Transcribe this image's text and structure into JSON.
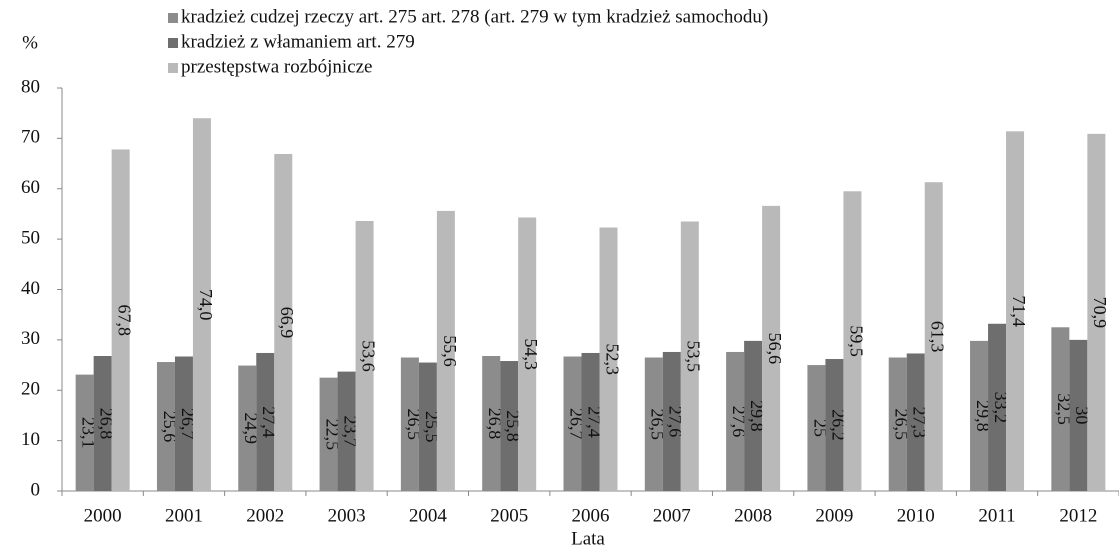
{
  "chart_data": {
    "type": "bar",
    "y_label": "%",
    "x_label": "Lata",
    "categories": [
      "2000",
      "2001",
      "2002",
      "2003",
      "2004",
      "2005",
      "2006",
      "2007",
      "2008",
      "2009",
      "2010",
      "2011",
      "2012"
    ],
    "series": [
      {
        "name": "kradzież cudzej rzeczy art. 275 art. 278 (art. 279 w tym kradzież samochodu)",
        "color": "#8c8c8c",
        "values": [
          23.1,
          25.6,
          24.9,
          22.5,
          26.5,
          26.8,
          26.7,
          26.5,
          27.6,
          25,
          26.5,
          29.8,
          32.5
        ],
        "value_labels": [
          "23,1",
          "25,6",
          "24,9",
          "22,5",
          "26,5",
          "26,8",
          "26,7",
          "26,5",
          "27,6",
          "25",
          "26,5",
          "29,8",
          "32,5"
        ]
      },
      {
        "name": "kradzież z włamaniem art. 279",
        "color": "#6e6e6e",
        "values": [
          26.8,
          26.7,
          27.4,
          23.7,
          25.5,
          25.8,
          27.4,
          27.6,
          29.8,
          26.2,
          27.3,
          33.2,
          30
        ],
        "value_labels": [
          "26,8",
          "26,7",
          "27,4",
          "23,7",
          "25,5",
          "25,8",
          "27,4",
          "27,6",
          "29,8",
          "26,2",
          "27,3",
          "33,2",
          "30"
        ]
      },
      {
        "name": "przestępstwa rozbójnicze",
        "color": "#b9b9b9",
        "values": [
          67.8,
          74.0,
          66.9,
          53.6,
          55.6,
          54.3,
          52.3,
          53.5,
          56.6,
          59.5,
          61.3,
          71.4,
          70.9
        ],
        "value_labels": [
          "67,8",
          "74,0",
          "66,9",
          "53,6",
          "55,6",
          "54,3",
          "52,3",
          "53,5",
          "56,6",
          "59,5",
          "61,3",
          "71,4",
          "70,9"
        ]
      }
    ],
    "ylim": [
      0,
      80
    ],
    "yticks": [
      0,
      10,
      20,
      30,
      40,
      50,
      60,
      70,
      80
    ],
    "grid": false
  }
}
